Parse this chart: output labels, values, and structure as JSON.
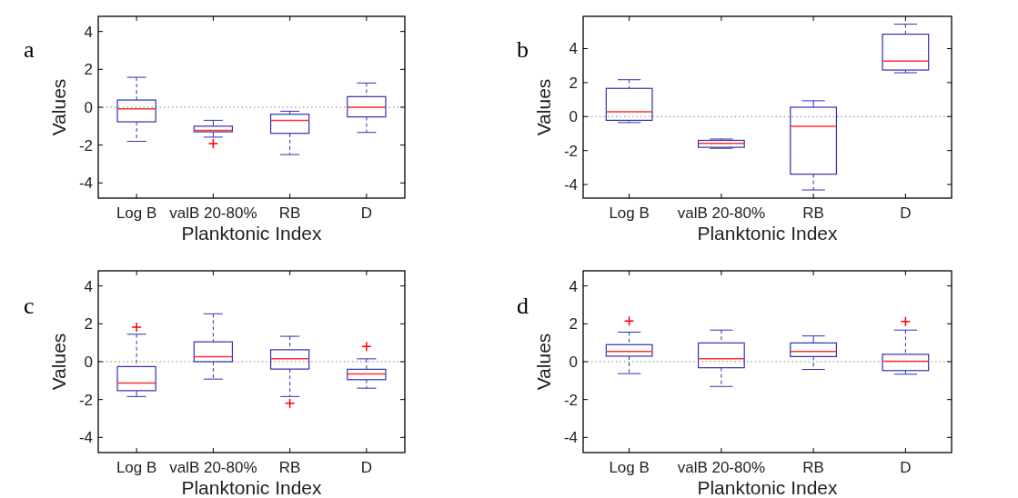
{
  "chart_data": [
    {
      "type": "box",
      "title": "a",
      "xlabel": "Planktonic Index",
      "ylabel": "Values",
      "categories": [
        "Log B",
        "valB 20-80%",
        "RB",
        "D"
      ],
      "ylim": [
        -4.8,
        4.8
      ],
      "yticks": [
        -4,
        -2,
        0,
        2,
        4
      ],
      "grid": false,
      "ref_lines": [
        {
          "axis": "y",
          "value": 0,
          "line_style": "dotted",
          "color": "#808080"
        }
      ],
      "series": [
        {
          "color": "#3030b0",
          "boxes": [
            {
              "low": -1.8,
              "q1": -0.77,
              "median": -0.08,
              "q3": 0.38,
              "high": 1.58
            },
            {
              "low": -1.58,
              "q1": -1.3,
              "median": -1.22,
              "q3": -1.0,
              "high": -0.69,
              "outliers": [
                -1.92
              ]
            },
            {
              "low": -2.5,
              "q1": -1.38,
              "median": -0.69,
              "q3": -0.37,
              "high": -0.21
            },
            {
              "low": -1.33,
              "q1": -0.51,
              "median": 0,
              "q3": 0.56,
              "high": 1.28
            }
          ]
        }
      ]
    },
    {
      "type": "box",
      "title": "b",
      "xlabel": "Planktonic Index",
      "ylabel": "Values",
      "categories": [
        "Log B",
        "valB 20-80%",
        "RB",
        "D"
      ],
      "ylim": [
        -4.8,
        5.9
      ],
      "yticks": [
        -4,
        -2,
        0,
        2,
        4
      ],
      "grid": false,
      "ref_lines": [
        {
          "axis": "y",
          "value": 0,
          "line_style": "dotted",
          "color": "#808080"
        }
      ],
      "series": [
        {
          "color": "#3030b0",
          "boxes": [
            {
              "low": -0.35,
              "q1": -0.22,
              "median": 0.28,
              "q3": 1.66,
              "high": 2.17
            },
            {
              "low": -1.87,
              "q1": -1.81,
              "median": -1.58,
              "q3": -1.4,
              "high": -1.32
            },
            {
              "low": -4.32,
              "q1": -3.39,
              "median": -0.57,
              "q3": 0.55,
              "high": 0.93
            },
            {
              "low": 2.58,
              "q1": 2.74,
              "median": 3.27,
              "q3": 4.85,
              "high": 5.44
            }
          ]
        }
      ]
    },
    {
      "type": "box",
      "title": "c",
      "xlabel": "Planktonic Index",
      "ylabel": "Values",
      "categories": [
        "Log B",
        "valB 20-80%",
        "RB",
        "D"
      ],
      "ylim": [
        -4.8,
        4.8
      ],
      "yticks": [
        -4,
        -2,
        0,
        2,
        4
      ],
      "grid": false,
      "ref_lines": [
        {
          "axis": "y",
          "value": 0,
          "line_style": "dotted",
          "color": "#808080"
        }
      ],
      "series": [
        {
          "color": "#3030b0",
          "boxes": [
            {
              "low": -1.84,
              "q1": -1.53,
              "median": -1.13,
              "q3": -0.26,
              "high": 1.45,
              "outliers": [
                1.82
              ]
            },
            {
              "low": -0.92,
              "q1": 0.0,
              "median": 0.27,
              "q3": 1.05,
              "high": 2.53
            },
            {
              "low": -1.84,
              "q1": -0.39,
              "median": 0.16,
              "q3": 0.63,
              "high": 1.34,
              "outliers": [
                -2.2
              ]
            },
            {
              "low": -1.4,
              "q1": -0.95,
              "median": -0.65,
              "q3": -0.4,
              "high": 0.15,
              "outliers": [
                0.8
              ]
            }
          ]
        }
      ]
    },
    {
      "type": "box",
      "title": "d",
      "xlabel": "Planktonic Index",
      "ylabel": "Values",
      "categories": [
        "Log B",
        "valB 20-80%",
        "RB",
        "D"
      ],
      "ylim": [
        -4.8,
        4.8
      ],
      "yticks": [
        -4,
        -2,
        0,
        2,
        4
      ],
      "grid": false,
      "ref_lines": [
        {
          "axis": "y",
          "value": 0,
          "line_style": "dotted",
          "color": "#808080"
        }
      ],
      "series": [
        {
          "color": "#3030b0",
          "boxes": [
            {
              "low": -0.63,
              "q1": 0.29,
              "median": 0.54,
              "q3": 0.9,
              "high": 1.56,
              "outliers": [
                2.15
              ]
            },
            {
              "low": -1.31,
              "q1": -0.32,
              "median": 0.16,
              "q3": 0.99,
              "high": 1.67
            },
            {
              "low": -0.41,
              "q1": 0.27,
              "median": 0.54,
              "q3": 0.99,
              "high": 1.36
            },
            {
              "low": -0.66,
              "q1": -0.47,
              "median": 0.02,
              "q3": 0.39,
              "high": 1.67,
              "outliers": [
                2.12
              ]
            }
          ]
        }
      ]
    }
  ]
}
